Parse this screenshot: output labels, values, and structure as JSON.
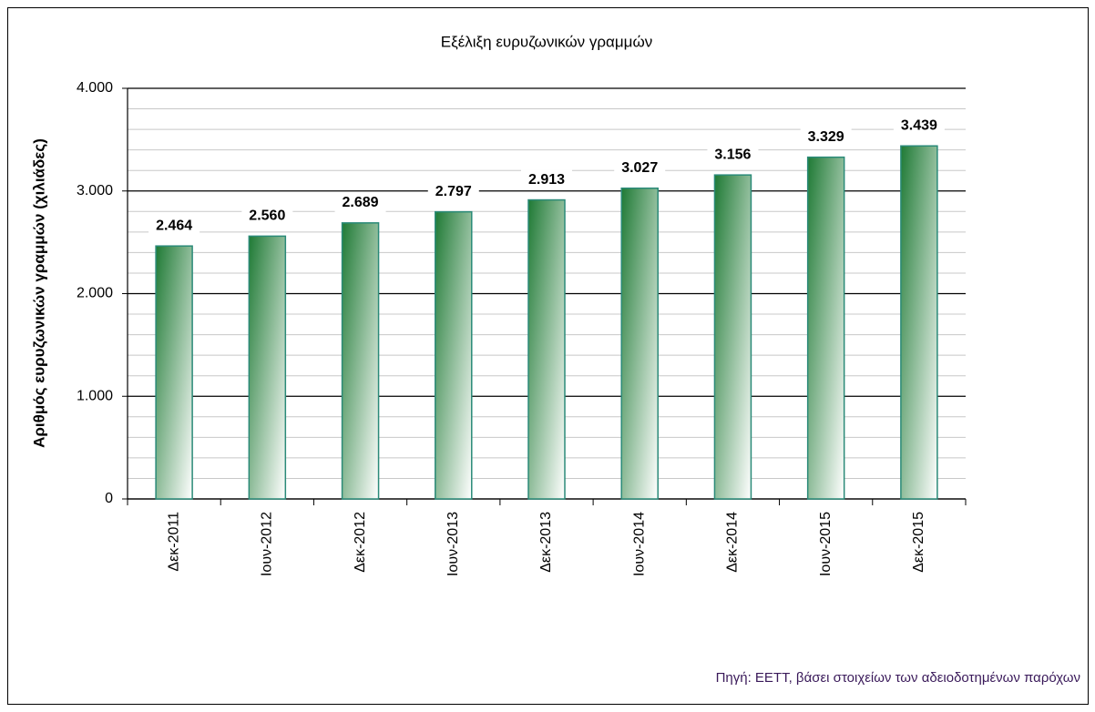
{
  "chart_data": {
    "type": "bar",
    "title": "Εξέλιξη ευρυζωνικών γραμμών",
    "y_label": "Αριθμός ευρυζωνικών γραμμών (χιλιάδες)",
    "source": "Πηγή: ΕΕΤΤ, βάσει στοιχείων των αδειοδοτημένων παρόχων",
    "categories": [
      "Δεκ-2011",
      "Ιουν-2012",
      "Δεκ-2012",
      "Ιουν-2013",
      "Δεκ-2013",
      "Ιουν-2014",
      "Δεκ-2014",
      "Ιουν-2015",
      "Δεκ-2015"
    ],
    "values": [
      2464,
      2560,
      2689,
      2797,
      2913,
      3027,
      3156,
      3329,
      3439
    ],
    "value_labels": [
      "2.464",
      "2.560",
      "2.689",
      "2.797",
      "2.913",
      "3.027",
      "3.156",
      "3.329",
      "3.439"
    ],
    "color": "#1f7a35",
    "ylim": [
      0,
      4000
    ],
    "yticks": [
      0,
      {
        "value": 1000,
        "label": "1.000"
      },
      {
        "value": 2000,
        "label": "2.000"
      },
      {
        "value": 3000,
        "label": "3.000"
      },
      {
        "value": 4000,
        "label": "4.000"
      }
    ],
    "minor_yticks": [
      200,
      400,
      600,
      800,
      1200,
      1400,
      1600,
      1800,
      2200,
      2400,
      2600,
      2800,
      3200,
      3400,
      3600,
      3800
    ],
    "grid": true
  }
}
